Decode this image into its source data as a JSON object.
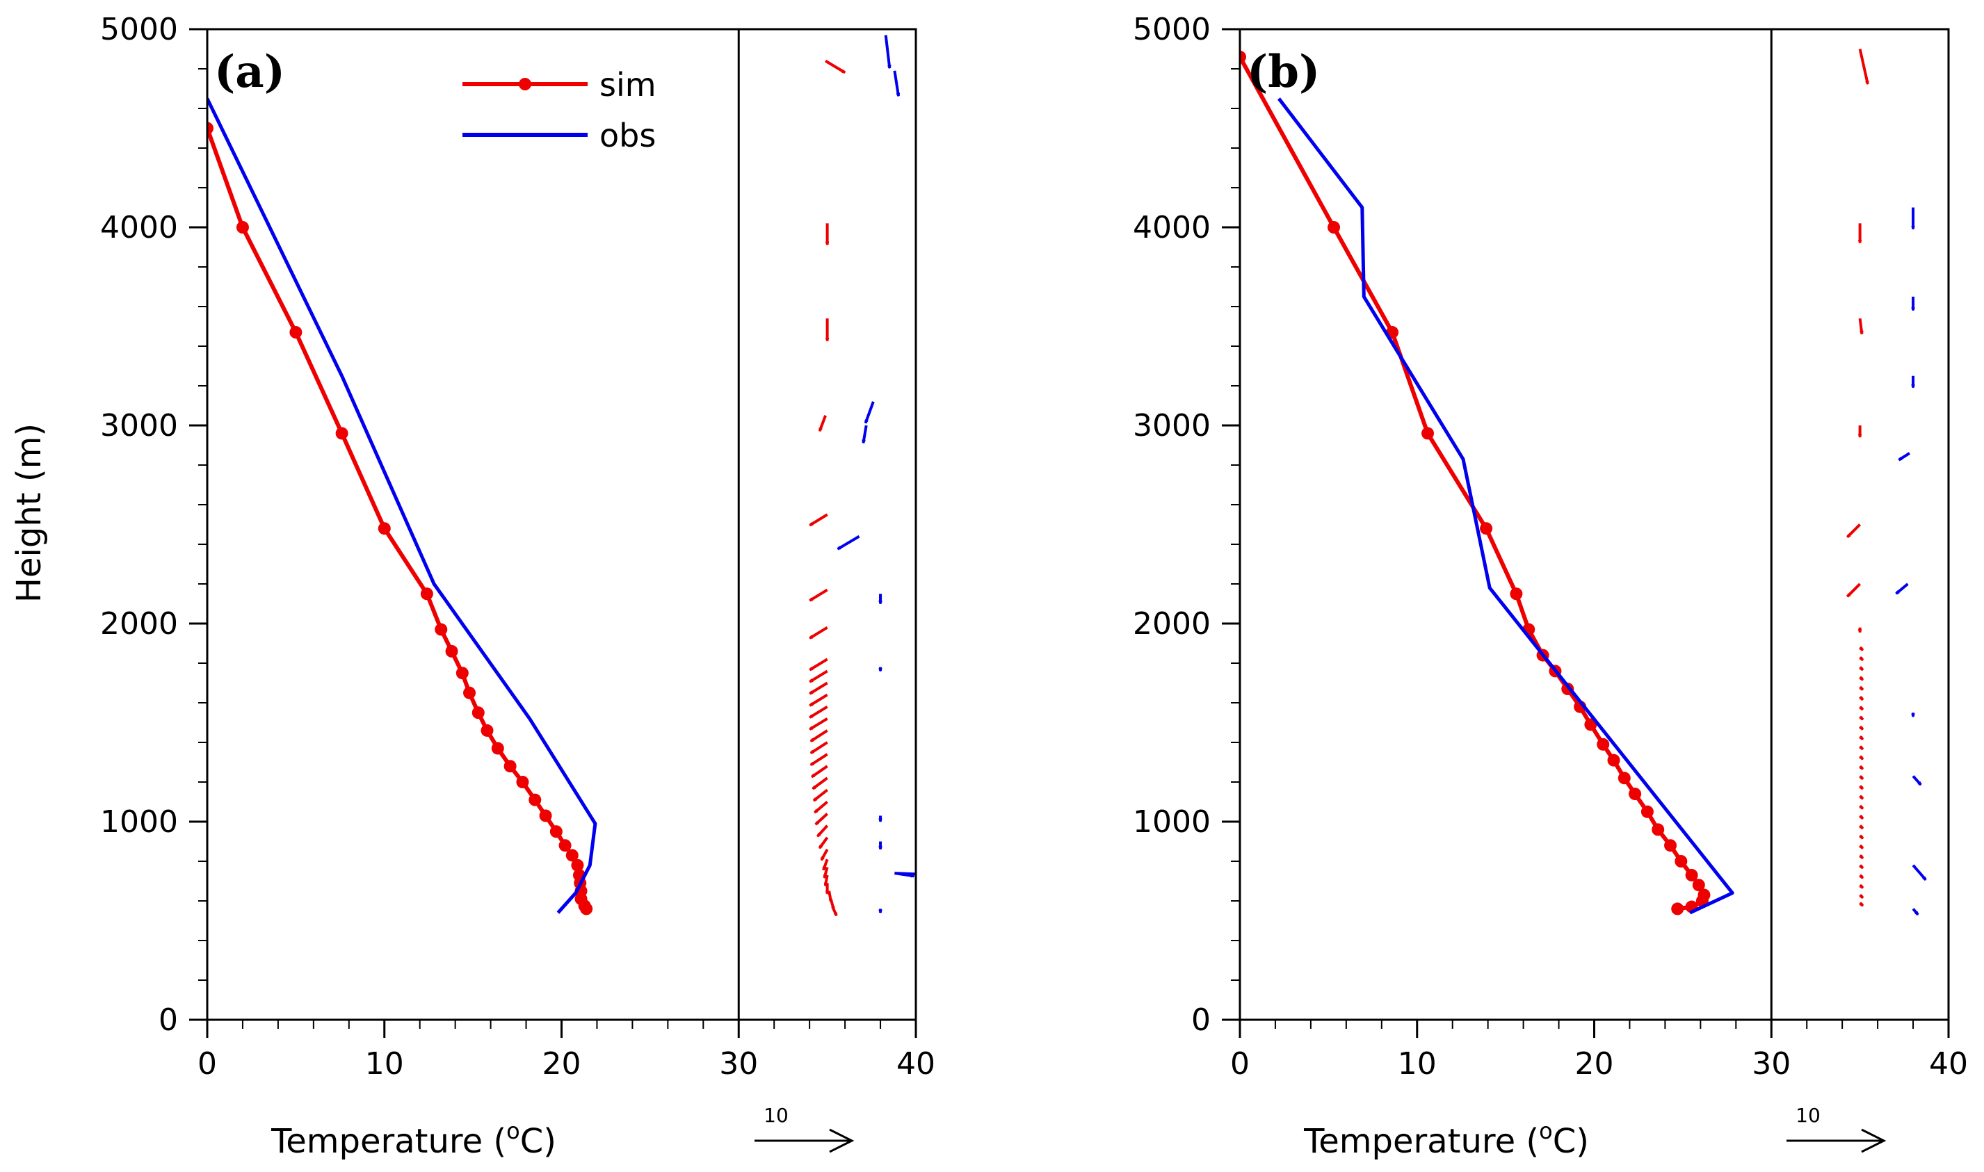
{
  "colors": {
    "sim": "#ee0000",
    "obs": "#0000ee",
    "axis": "#000000"
  },
  "legend": {
    "sim": "sim",
    "obs": "obs"
  },
  "chart_data": [
    {
      "type": "line",
      "panel_label": "(a)",
      "xlabel": "Temperature (oC)",
      "xlabel_parts": {
        "main": "Temperature (",
        "sup": "o",
        "unit": "C)"
      },
      "ylabel": "Height (m)",
      "xlim": [
        0,
        40
      ],
      "ylim": [
        0,
        5000
      ],
      "xticks": [
        "0",
        "10",
        "20",
        "30",
        "40"
      ],
      "yticks": [
        "0",
        "1000",
        "2000",
        "3000",
        "4000",
        "5000"
      ],
      "divider_x": 30,
      "reference_vector": {
        "label": "10"
      },
      "legend_entries": [
        "sim",
        "obs"
      ],
      "series": [
        {
          "name": "sim",
          "marker": "circle",
          "points": [
            [
              0,
              4500
            ],
            [
              2,
              4000
            ],
            [
              5,
              3470
            ],
            [
              7.6,
              2960
            ],
            [
              10,
              2480
            ],
            [
              12.4,
              2150
            ],
            [
              13.2,
              1970
            ],
            [
              13.8,
              1860
            ],
            [
              14.4,
              1750
            ],
            [
              14.8,
              1650
            ],
            [
              15.3,
              1550
            ],
            [
              15.8,
              1460
            ],
            [
              16.4,
              1370
            ],
            [
              17.1,
              1280
            ],
            [
              17.8,
              1200
            ],
            [
              18.5,
              1110
            ],
            [
              19.1,
              1030
            ],
            [
              19.7,
              950
            ],
            [
              20.2,
              880
            ],
            [
              20.6,
              830
            ],
            [
              20.9,
              780
            ],
            [
              21,
              730
            ],
            [
              21.05,
              690
            ],
            [
              21.1,
              650
            ],
            [
              21.1,
              610
            ],
            [
              21.3,
              575
            ],
            [
              21.4,
              560
            ]
          ]
        },
        {
          "name": "obs",
          "marker": "none",
          "points": [
            [
              0,
              4650
            ],
            [
              7.6,
              3250
            ],
            [
              12.8,
              2200
            ],
            [
              18.2,
              1520
            ],
            [
              21.9,
              990
            ],
            [
              21.6,
              780
            ],
            [
              20.8,
              640
            ],
            [
              19.8,
              540
            ]
          ]
        }
      ],
      "wind_sim": [
        [
          34.9,
          4840,
          2,
          -1.2
        ],
        [
          35,
          4020,
          0,
          -2.2
        ],
        [
          35,
          3540,
          0,
          -2.3
        ],
        [
          34.9,
          3050,
          -0.6,
          -1.6
        ],
        [
          35,
          2550,
          -1.8,
          -1.1
        ],
        [
          35,
          2170,
          -1.8,
          -1.1
        ],
        [
          35,
          1980,
          -1.8,
          -1.1
        ],
        [
          35,
          1820,
          -1.8,
          -1.1
        ],
        [
          35,
          1760,
          -1.8,
          -1.1
        ],
        [
          35,
          1700,
          -1.8,
          -1.1
        ],
        [
          35,
          1640,
          -1.8,
          -1.1
        ],
        [
          35,
          1580,
          -1.8,
          -1.1
        ],
        [
          35,
          1520,
          -1.8,
          -1.1
        ],
        [
          35,
          1460,
          -1.7,
          -1.1
        ],
        [
          35,
          1400,
          -1.7,
          -1.1
        ],
        [
          35,
          1340,
          -1.7,
          -1.1
        ],
        [
          35,
          1280,
          -1.6,
          -1.1
        ],
        [
          35,
          1220,
          -1.5,
          -1.1
        ],
        [
          35,
          1160,
          -1.4,
          -1.1
        ],
        [
          35,
          1100,
          -1.3,
          -1.1
        ],
        [
          35,
          1040,
          -1.2,
          -1.1
        ],
        [
          35,
          980,
          -1,
          -1.1
        ],
        [
          35,
          920,
          -0.8,
          -1.1
        ],
        [
          35,
          860,
          -0.6,
          -1.1
        ],
        [
          35,
          810,
          -0.4,
          -1.1
        ],
        [
          35,
          770,
          -0.3,
          -1.1
        ],
        [
          35,
          730,
          -0.2,
          -1.1
        ],
        [
          35,
          690,
          0,
          -1.1
        ],
        [
          35.1,
          650,
          0.2,
          -1.1
        ],
        [
          35.2,
          610,
          0.3,
          -1.1
        ],
        [
          35.3,
          570,
          0.4,
          -0.9
        ]
      ],
      "wind_obs": [
        [
          38.8,
          4790,
          0.4,
          -2.6
        ],
        [
          38.3,
          4970,
          0.4,
          -3.4
        ],
        [
          37.6,
          3120,
          -0.8,
          -2.2
        ],
        [
          37.2,
          3000,
          -0.3,
          -1.8
        ],
        [
          36.8,
          2440,
          -2.2,
          -1.3
        ],
        [
          38,
          2140,
          0,
          -0.8
        ],
        [
          38,
          2150,
          0,
          -1
        ],
        [
          38,
          1780,
          0,
          -0.4
        ],
        [
          38,
          1030,
          0,
          -0.6
        ],
        [
          38,
          900,
          0,
          -0.8
        ],
        [
          38.8,
          740,
          2,
          -0.3
        ],
        [
          38.8,
          740,
          2.5,
          -0.1
        ],
        [
          38,
          560,
          0,
          -0.4
        ]
      ]
    },
    {
      "type": "line",
      "panel_label": "(b)",
      "xlabel": "Temperature (oC)",
      "xlabel_parts": {
        "main": "Temperature (",
        "sup": "o",
        "unit": "C)"
      },
      "ylabel": "",
      "xlim": [
        0,
        40
      ],
      "ylim": [
        0,
        5000
      ],
      "xticks": [
        "0",
        "10",
        "20",
        "30",
        "40"
      ],
      "yticks": [
        "0",
        "1000",
        "2000",
        "3000",
        "4000",
        "5000"
      ],
      "divider_x": 30,
      "reference_vector": {
        "label": "10"
      },
      "legend_entries": [],
      "series": [
        {
          "name": "sim",
          "marker": "circle",
          "points": [
            [
              0,
              4860
            ],
            [
              5.3,
              4000
            ],
            [
              8.6,
              3470
            ],
            [
              10.6,
              2960
            ],
            [
              13.9,
              2480
            ],
            [
              15.6,
              2150
            ],
            [
              16.3,
              1970
            ],
            [
              17.1,
              1840
            ],
            [
              17.8,
              1760
            ],
            [
              18.5,
              1670
            ],
            [
              19.2,
              1580
            ],
            [
              19.8,
              1490
            ],
            [
              20.5,
              1390
            ],
            [
              21.1,
              1310
            ],
            [
              21.7,
              1220
            ],
            [
              22.3,
              1140
            ],
            [
              23,
              1050
            ],
            [
              23.6,
              960
            ],
            [
              24.3,
              880
            ],
            [
              24.9,
              800
            ],
            [
              25.5,
              730
            ],
            [
              25.9,
              680
            ],
            [
              26.2,
              630
            ],
            [
              26.1,
              600
            ],
            [
              25.5,
              570
            ],
            [
              24.7,
              560
            ]
          ]
        },
        {
          "name": "obs",
          "marker": "none",
          "points": [
            [
              2.2,
              4650
            ],
            [
              6.9,
              4100
            ],
            [
              7,
              3650
            ],
            [
              12.6,
              2830
            ],
            [
              14.1,
              2180
            ],
            [
              27.8,
              640
            ],
            [
              25.4,
              540
            ]
          ]
        }
      ],
      "wind_sim": [
        [
          35,
          4900,
          0.8,
          -3.6
        ],
        [
          35,
          4020,
          0,
          -2
        ],
        [
          35,
          3540,
          0.2,
          -1.6
        ],
        [
          35,
          3000,
          0,
          -1.2
        ],
        [
          35,
          2500,
          -1.3,
          -1.3
        ],
        [
          35,
          2200,
          -1.3,
          -1.3
        ],
        [
          35,
          1980,
          0,
          -0.5
        ],
        [
          35,
          1880,
          0.3,
          -0.3
        ],
        [
          35,
          1830,
          0.3,
          -0.3
        ],
        [
          35,
          1780,
          0.3,
          -0.3
        ],
        [
          35,
          1730,
          0.3,
          -0.3
        ],
        [
          35,
          1680,
          0.3,
          -0.3
        ],
        [
          35,
          1630,
          0.3,
          -0.3
        ],
        [
          35,
          1580,
          0.3,
          -0.3
        ],
        [
          35,
          1530,
          0.3,
          -0.3
        ],
        [
          35,
          1480,
          0.3,
          -0.3
        ],
        [
          35,
          1430,
          0.3,
          -0.3
        ],
        [
          35,
          1380,
          0.3,
          -0.3
        ],
        [
          35,
          1330,
          0.3,
          -0.3
        ],
        [
          35,
          1280,
          0.3,
          -0.3
        ],
        [
          35,
          1230,
          0.3,
          -0.3
        ],
        [
          35,
          1180,
          0.3,
          -0.3
        ],
        [
          35,
          1130,
          0.3,
          -0.3
        ],
        [
          35,
          1080,
          0.3,
          -0.3
        ],
        [
          35,
          1030,
          0.3,
          -0.3
        ],
        [
          35,
          980,
          0.3,
          -0.3
        ],
        [
          35,
          930,
          0.3,
          -0.3
        ],
        [
          35,
          880,
          0.3,
          -0.3
        ],
        [
          35,
          830,
          0.3,
          -0.3
        ],
        [
          35,
          780,
          0.3,
          -0.3
        ],
        [
          35,
          730,
          0.3,
          -0.3
        ],
        [
          35,
          680,
          0.3,
          -0.3
        ],
        [
          35,
          630,
          0.3,
          -0.3
        ],
        [
          35,
          590,
          0.3,
          -0.3
        ]
      ],
      "wind_obs": [
        [
          38,
          4100,
          0,
          -2.2
        ],
        [
          38,
          3650,
          0,
          -1.4
        ],
        [
          38,
          3250,
          0,
          -1.2
        ],
        [
          37.8,
          2860,
          -1.1,
          -0.7
        ],
        [
          37.7,
          2200,
          -1.2,
          -1
        ],
        [
          38,
          1550,
          0,
          -0.4
        ],
        [
          38,
          1230,
          0.8,
          -0.9
        ],
        [
          38,
          780,
          1.3,
          -1.5
        ],
        [
          38,
          560,
          0.5,
          -0.6
        ]
      ]
    }
  ]
}
